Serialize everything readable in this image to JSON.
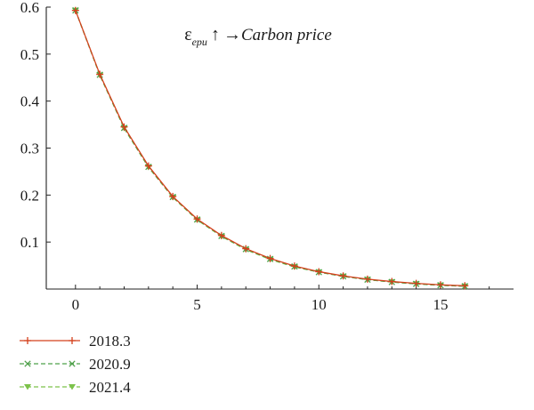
{
  "chart_data": {
    "type": "line",
    "title": {
      "symbol": "ε",
      "subscript": "epu",
      "arrow_up": "↑",
      "arrow_right": "→",
      "text": "Carbon price"
    },
    "xlabel": "",
    "ylabel": "",
    "xlim": [
      -1.2,
      18
    ],
    "ylim": [
      0,
      0.6
    ],
    "xticks": [
      "0",
      "5",
      "10",
      "15"
    ],
    "yticks": [
      "0.1",
      "0.2",
      "0.3",
      "0.4",
      "0.5",
      "0.6"
    ],
    "grid": false,
    "legend_position": "bottom-left",
    "x": [
      0,
      1,
      2,
      3,
      4,
      5,
      6,
      7,
      8,
      9,
      10,
      11,
      12,
      13,
      14,
      15,
      16
    ],
    "series": [
      {
        "name": "2018.3",
        "color": "#d4401c",
        "marker": "plus",
        "dash": "solid",
        "values": [
          0.593,
          0.457,
          0.345,
          0.262,
          0.197,
          0.149,
          0.114,
          0.086,
          0.065,
          0.049,
          0.037,
          0.028,
          0.021,
          0.016,
          0.012,
          0.009,
          0.007
        ]
      },
      {
        "name": "2020.9",
        "color": "#4ea04a",
        "marker": "x",
        "dash": "dashed",
        "values": [
          0.593,
          0.456,
          0.343,
          0.26,
          0.196,
          0.148,
          0.113,
          0.085,
          0.064,
          0.048,
          0.036,
          0.027,
          0.02,
          0.015,
          0.011,
          0.008,
          0.006
        ]
      },
      {
        "name": "2021.4",
        "color": "#7cc24a",
        "marker": "triangle-down",
        "dash": "dashed",
        "values": [
          0.593,
          0.455,
          0.342,
          0.259,
          0.195,
          0.147,
          0.112,
          0.084,
          0.063,
          0.047,
          0.036,
          0.027,
          0.02,
          0.015,
          0.011,
          0.008,
          0.006
        ]
      }
    ]
  }
}
